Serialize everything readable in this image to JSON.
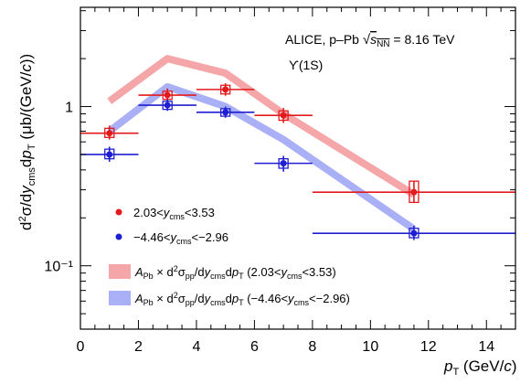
{
  "chart_data": {
    "type": "scatter",
    "x_axis": {
      "label": "p_T (GeV/c)",
      "range": [
        0,
        15
      ],
      "ticks": [
        0,
        2,
        4,
        6,
        8,
        10,
        12,
        14
      ],
      "tick_labels": [
        "0",
        "2",
        "4",
        "6",
        "8",
        "10",
        "12",
        "14"
      ]
    },
    "y_axis": {
      "label": "d²σ/dy_cms dp_T (μb/(GeV/c))",
      "scale": "log",
      "range": [
        0.04,
        4.2
      ],
      "major_ticks": [
        0.1,
        1
      ],
      "major_tick_labels": [
        "10⁻¹",
        "1"
      ]
    },
    "annotations": {
      "experiment": "ALICE, p–Pb √s_NN = 8.16 TeV",
      "particle": "ϒ(1S)"
    },
    "grid": false,
    "legend_position": "left",
    "series": [
      {
        "name": "2.03<y_cms<3.53",
        "kind": "data",
        "color": "#e31a1c",
        "points": [
          {
            "x": 1,
            "xlow": 0,
            "xhigh": 2,
            "y": 0.68,
            "ylow": 0.62,
            "yhigh": 0.76,
            "syslow": 0.64,
            "syshigh": 0.73
          },
          {
            "x": 3,
            "xlow": 2,
            "xhigh": 4,
            "y": 1.18,
            "ylow": 1.08,
            "yhigh": 1.3,
            "syslow": 1.11,
            "syshigh": 1.25
          },
          {
            "x": 5,
            "xlow": 4,
            "xhigh": 6,
            "y": 1.28,
            "ylow": 1.17,
            "yhigh": 1.4,
            "syslow": 1.2,
            "syshigh": 1.36
          },
          {
            "x": 7,
            "xlow": 6,
            "xhigh": 8,
            "y": 0.88,
            "ylow": 0.79,
            "yhigh": 0.98,
            "syslow": 0.82,
            "syshigh": 0.94
          },
          {
            "x": 11.5,
            "xlow": 8,
            "xhigh": 15,
            "y": 0.29,
            "ylow": 0.25,
            "yhigh": 0.34,
            "syslow": 0.25,
            "syshigh": 0.34
          }
        ]
      },
      {
        "name": "−4.46<y_cms<−2.96",
        "kind": "data",
        "color": "#1f1fd1",
        "points": [
          {
            "x": 1,
            "xlow": 0,
            "xhigh": 2,
            "y": 0.5,
            "ylow": 0.45,
            "yhigh": 0.56,
            "syslow": 0.47,
            "syshigh": 0.54
          },
          {
            "x": 3,
            "xlow": 2,
            "xhigh": 4,
            "y": 1.02,
            "ylow": 0.94,
            "yhigh": 1.11,
            "syslow": 0.96,
            "syshigh": 1.08
          },
          {
            "x": 5,
            "xlow": 4,
            "xhigh": 6,
            "y": 0.92,
            "ylow": 0.85,
            "yhigh": 1.0,
            "syslow": 0.87,
            "syshigh": 0.97
          },
          {
            "x": 7,
            "xlow": 6,
            "xhigh": 8,
            "y": 0.44,
            "ylow": 0.39,
            "yhigh": 0.49,
            "syslow": 0.41,
            "syshigh": 0.47
          },
          {
            "x": 11.5,
            "xlow": 8,
            "xhigh": 15,
            "y": 0.16,
            "ylow": 0.145,
            "yhigh": 0.178,
            "syslow": 0.15,
            "syshigh": 0.172
          }
        ]
      },
      {
        "name": "A_Pb × d²σ_pp/dy_cms dp_T (2.03<y_cms<3.53)",
        "kind": "band",
        "color": "#f4a6a8",
        "x": [
          1,
          3,
          5,
          7,
          11.5
        ],
        "y": [
          1.08,
          2.0,
          1.62,
          0.9,
          0.28
        ]
      },
      {
        "name": "A_Pb × d²σ_pp/dy_cms dp_T (−4.46<y_cms<−2.96)",
        "kind": "band",
        "color": "#aab0f5",
        "x": [
          1,
          3,
          5,
          7,
          11.5
        ],
        "y": [
          0.7,
          1.33,
          1.0,
          0.62,
          0.17
        ]
      }
    ]
  }
}
